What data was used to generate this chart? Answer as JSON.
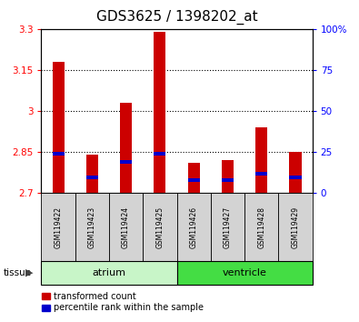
{
  "title": "GDS3625 / 1398202_at",
  "samples": [
    "GSM119422",
    "GSM119423",
    "GSM119424",
    "GSM119425",
    "GSM119426",
    "GSM119427",
    "GSM119428",
    "GSM119429"
  ],
  "red_values": [
    3.18,
    2.84,
    3.03,
    3.29,
    2.81,
    2.82,
    2.94,
    2.85
  ],
  "blue_values": [
    2.845,
    2.757,
    2.815,
    2.845,
    2.748,
    2.748,
    2.772,
    2.757
  ],
  "base_value": 2.7,
  "ylim_left": [
    2.7,
    3.3
  ],
  "ylim_right": [
    0,
    100
  ],
  "yticks_left": [
    2.7,
    2.85,
    3.0,
    3.15,
    3.3
  ],
  "yticks_right": [
    0,
    25,
    50,
    75,
    100
  ],
  "ytick_labels_left": [
    "2.7",
    "2.85",
    "3",
    "3.15",
    "3.3"
  ],
  "ytick_labels_right": [
    "0",
    "25",
    "50",
    "75",
    "100%"
  ],
  "grid_values": [
    2.85,
    3.0,
    3.15
  ],
  "bar_width": 0.35,
  "red_color": "#cc0000",
  "blue_color": "#0000cc",
  "blue_bar_height": 0.012,
  "title_fontsize": 11,
  "tick_fontsize": 7.5,
  "sample_fontsize": 5.5,
  "tissue_fontsize": 8,
  "legend_fontsize": 7,
  "bg_color_plot": "#ffffff",
  "bg_color_sample": "#d3d3d3",
  "atrium_color": "#c8f5c8",
  "ventricle_color": "#44dd44",
  "atrium_samples": [
    0,
    1,
    2,
    3
  ],
  "ventricle_samples": [
    4,
    5,
    6,
    7
  ]
}
